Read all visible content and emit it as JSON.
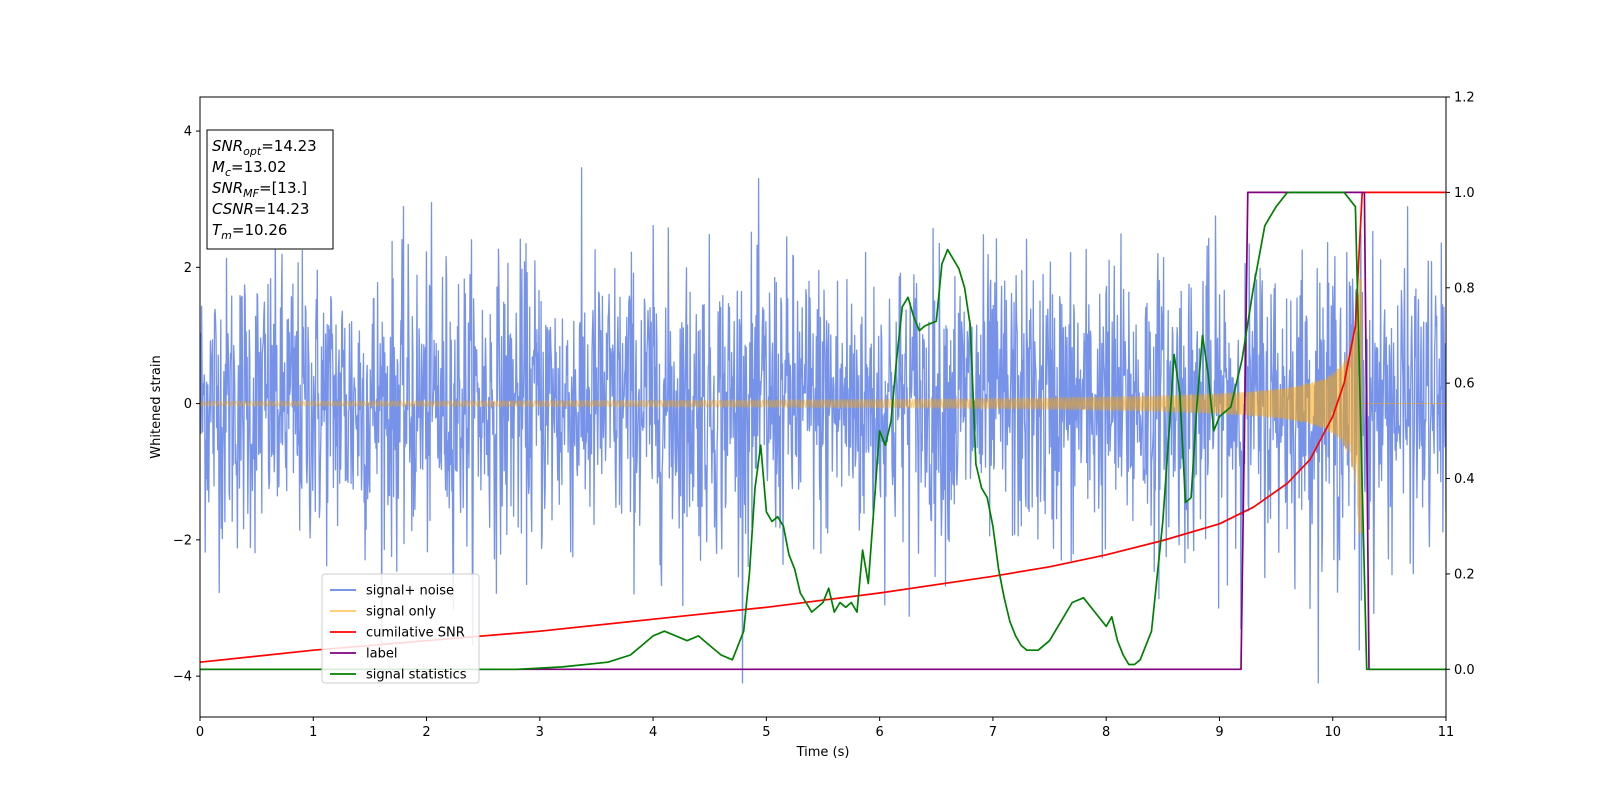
{
  "chart_data": {
    "type": "line",
    "xlabel": "Time (s)",
    "ylabel": "Whitened strain",
    "xlim": [
      0,
      11
    ],
    "ylim": [
      -4.6,
      4.5
    ],
    "y2lim": [
      -0.1,
      1.2
    ],
    "xticks": [
      0,
      1,
      2,
      3,
      4,
      5,
      6,
      7,
      8,
      9,
      10,
      11
    ],
    "yticks": [
      -4,
      -2,
      0,
      2,
      4
    ],
    "y2ticks": [
      "0.0",
      "0.2",
      "0.4",
      "0.6",
      "0.8",
      "1.0",
      "1.2"
    ],
    "grid": false,
    "legend_position": "lower-left",
    "stats_box": [
      {
        "sym": "SNR",
        "sub": "opt",
        "value": "=14.23"
      },
      {
        "sym": "M",
        "sub": "c",
        "value": "=13.02"
      },
      {
        "sym": "SNR",
        "sub": "MF",
        "value": "=[13.]"
      },
      {
        "sym": "CSNR",
        "sub": "",
        "value": "=14.23"
      },
      {
        "sym": "T",
        "sub": "m",
        "value": "=10.26"
      }
    ],
    "series": [
      {
        "name": "signal+ noise",
        "color": "#4169e1",
        "axis": "left",
        "kind": "noise",
        "amplitude_std": 1.05,
        "n_points": 2400
      },
      {
        "name": "signal only",
        "color": "#ffa500",
        "axis": "left",
        "kind": "chirp",
        "merger_time": 10.26,
        "amplitude_start": 0.03,
        "amplitude_peak": 1.9
      },
      {
        "name": "cumilative SNR",
        "color": "#ff0000",
        "axis": "right",
        "x": [
          0,
          1,
          2,
          3,
          4,
          5,
          6,
          7,
          7.5,
          8,
          8.5,
          9,
          9.3,
          9.6,
          9.8,
          10.0,
          10.1,
          10.2,
          10.26,
          11
        ],
        "y": [
          0.015,
          0.04,
          0.06,
          0.08,
          0.105,
          0.13,
          0.16,
          0.195,
          0.215,
          0.24,
          0.27,
          0.305,
          0.34,
          0.39,
          0.44,
          0.53,
          0.6,
          0.72,
          1.0,
          1.0
        ]
      },
      {
        "name": "label",
        "color": "#800080",
        "axis": "right",
        "x": [
          0,
          9.19,
          9.25,
          10.28,
          10.32,
          11
        ],
        "y": [
          0,
          0,
          1,
          1,
          0,
          0
        ]
      },
      {
        "name": "signal statistics",
        "color": "#008000",
        "axis": "right",
        "x": [
          0,
          2.8,
          3.2,
          3.6,
          3.8,
          3.9,
          4.0,
          4.1,
          4.2,
          4.3,
          4.4,
          4.5,
          4.6,
          4.7,
          4.8,
          4.85,
          4.9,
          4.95,
          5.0,
          5.05,
          5.1,
          5.15,
          5.2,
          5.25,
          5.3,
          5.4,
          5.5,
          5.55,
          5.6,
          5.65,
          5.7,
          5.75,
          5.8,
          5.85,
          5.9,
          6.0,
          6.05,
          6.1,
          6.15,
          6.2,
          6.25,
          6.3,
          6.35,
          6.4,
          6.5,
          6.55,
          6.6,
          6.7,
          6.75,
          6.8,
          6.85,
          6.9,
          6.95,
          7.0,
          7.05,
          7.1,
          7.15,
          7.2,
          7.25,
          7.3,
          7.4,
          7.5,
          7.6,
          7.7,
          7.8,
          7.9,
          8.0,
          8.05,
          8.1,
          8.15,
          8.2,
          8.25,
          8.3,
          8.4,
          8.5,
          8.55,
          8.6,
          8.65,
          8.7,
          8.75,
          8.8,
          8.85,
          8.9,
          8.95,
          9.0,
          9.1,
          9.2,
          9.3,
          9.4,
          9.45,
          9.5,
          9.6,
          9.7,
          9.8,
          9.9,
          10.0,
          10.1,
          10.2,
          10.3,
          10.35,
          11
        ],
        "y": [
          0,
          0.0,
          0.005,
          0.015,
          0.03,
          0.05,
          0.07,
          0.08,
          0.07,
          0.06,
          0.07,
          0.05,
          0.03,
          0.02,
          0.08,
          0.2,
          0.38,
          0.47,
          0.33,
          0.31,
          0.32,
          0.3,
          0.24,
          0.21,
          0.16,
          0.12,
          0.14,
          0.17,
          0.12,
          0.14,
          0.13,
          0.14,
          0.12,
          0.25,
          0.18,
          0.5,
          0.47,
          0.52,
          0.65,
          0.76,
          0.78,
          0.74,
          0.71,
          0.72,
          0.73,
          0.85,
          0.88,
          0.84,
          0.8,
          0.72,
          0.43,
          0.38,
          0.36,
          0.3,
          0.21,
          0.15,
          0.1,
          0.07,
          0.05,
          0.04,
          0.04,
          0.06,
          0.1,
          0.14,
          0.15,
          0.12,
          0.09,
          0.11,
          0.06,
          0.03,
          0.01,
          0.01,
          0.02,
          0.08,
          0.31,
          0.48,
          0.66,
          0.58,
          0.35,
          0.36,
          0.55,
          0.7,
          0.62,
          0.5,
          0.53,
          0.55,
          0.65,
          0.8,
          0.93,
          0.95,
          0.97,
          1.0,
          1.0,
          1.0,
          1.0,
          1.0,
          1.0,
          0.97,
          0.0,
          0.0,
          0.0
        ]
      }
    ]
  }
}
